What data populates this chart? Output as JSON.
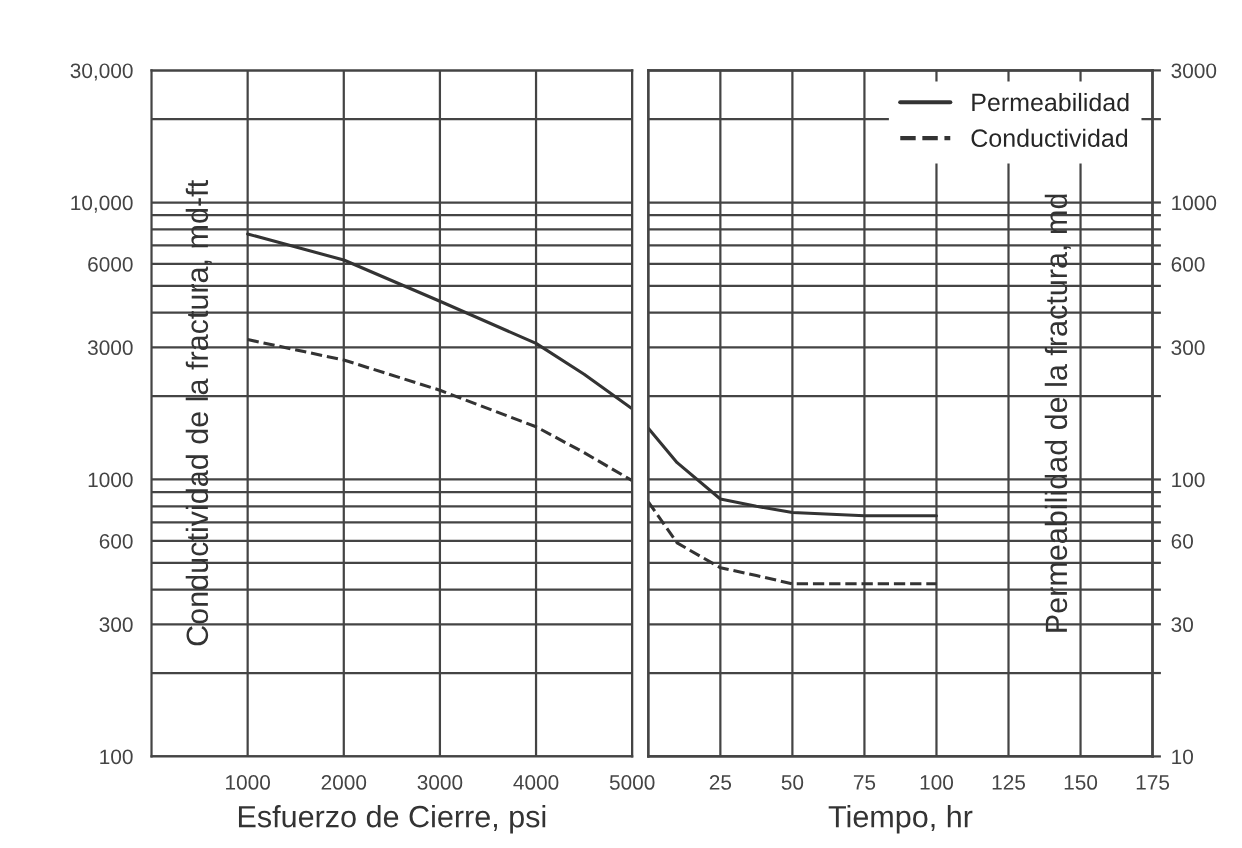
{
  "chart_data": [
    {
      "type": "line",
      "xlabel": "Esfuerzo de Cierre, psi",
      "ylabel": "Conductividad de la fractura, md-ft",
      "x": [
        1000,
        2000,
        3000,
        4000,
        4500,
        5000
      ],
      "series": [
        {
          "color": "#333333",
          "line_style": "solid",
          "values": [
            7700,
            6200,
            4400,
            3100,
            2400,
            1800
          ]
        },
        {
          "color": "#333333",
          "line_style": "dashed",
          "values": [
            3200,
            2700,
            2100,
            1550,
            1250,
            990
          ]
        }
      ],
      "xlim": [
        0,
        5000
      ],
      "xticks": [
        1000,
        2000,
        3000,
        4000,
        5000
      ],
      "log": "y",
      "ylim": [
        100,
        30000
      ],
      "yticks": [
        100,
        {
          "value": 200,
          "label": null
        },
        300,
        {
          "value": 400,
          "label": null
        },
        {
          "value": 500,
          "label": null
        },
        600,
        {
          "value": 700,
          "label": null
        },
        {
          "value": 800,
          "label": null
        },
        {
          "value": 900,
          "label": null
        },
        1000,
        {
          "value": 2000,
          "label": null
        },
        3000,
        {
          "value": 4000,
          "label": null
        },
        {
          "value": 5000,
          "label": null
        },
        6000,
        {
          "value": 7000,
          "label": null
        },
        {
          "value": 8000,
          "label": null
        },
        {
          "value": 9000,
          "label": null
        },
        {
          "value": 10000,
          "label": "10,000"
        },
        {
          "value": 20000,
          "label": null
        },
        {
          "value": 30000,
          "label": "30,000"
        }
      ],
      "grid": true,
      "legend": false
    },
    {
      "type": "line",
      "xlabel": "Tiempo, hr",
      "y2label": "Permeabilidad de la fractura, md",
      "x": [
        0,
        10,
        25,
        37.5,
        50,
        75,
        100
      ],
      "series": [
        {
          "name": "Permeabilidad",
          "color": "#333333",
          "line_style": "solid",
          "axis": "y2",
          "values": [
            153,
            115,
            85,
            80,
            76,
            74,
            74
          ]
        },
        {
          "name": "Conductividad",
          "color": "#333333",
          "line_style": "dashed",
          "axis": "y2",
          "values": [
            83,
            59,
            48,
            45,
            42,
            42,
            42
          ]
        }
      ],
      "xlim": [
        0,
        175
      ],
      "xticks": [
        25,
        50,
        75,
        100,
        125,
        150,
        175
      ],
      "log": "y2",
      "y2lim": [
        10,
        3000
      ],
      "y2ticks": [
        10,
        {
          "value": 20,
          "label": null
        },
        30,
        {
          "value": 40,
          "label": null
        },
        {
          "value": 50,
          "label": null
        },
        60,
        {
          "value": 70,
          "label": null
        },
        {
          "value": 80,
          "label": null
        },
        {
          "value": 90,
          "label": null
        },
        100,
        {
          "value": 200,
          "label": null
        },
        300,
        {
          "value": 400,
          "label": null
        },
        {
          "value": 500,
          "label": null
        },
        600,
        {
          "value": 700,
          "label": null
        },
        {
          "value": 800,
          "label": null
        },
        {
          "value": 900,
          "label": null
        },
        1000,
        {
          "value": 2000,
          "label": null
        },
        3000
      ],
      "grid": true,
      "legend": "top right"
    }
  ]
}
